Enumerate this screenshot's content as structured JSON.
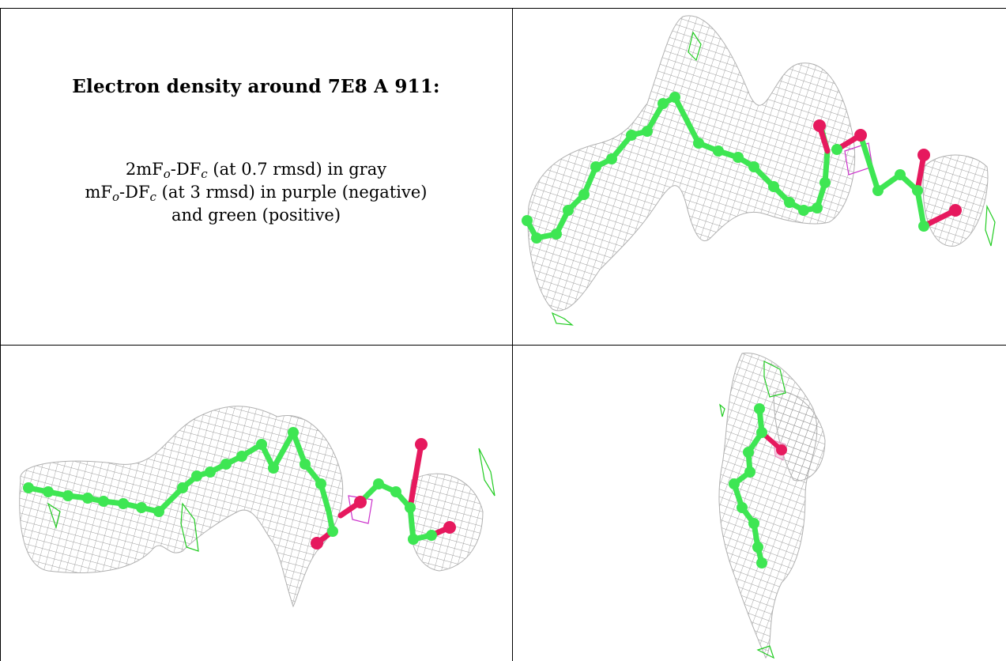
{
  "caption": {
    "title": "Electron density around 7E8 A 911:",
    "line1": {
      "pre": "2mF",
      "sub1": "o",
      "mid": "-DF",
      "sub2": "c",
      "post": " (at 0.7 rmsd) in gray"
    },
    "line2": {
      "pre": "mF",
      "sub1": "o",
      "mid": "-DF",
      "sub2": "c",
      "post": " (at 3 rmsd) in purple (negative)"
    },
    "line3": "and green (positive)"
  },
  "colors": {
    "carbon": "#3ee653",
    "oxygen": "#e6195e",
    "mesh_2fofc": "#9a9a9a",
    "mesh_positive": "#22cc22",
    "mesh_negative": "#cc33cc"
  },
  "panels": [
    {
      "name": "view-top-right",
      "icon": "ligand-density-view-icon"
    },
    {
      "name": "view-bottom-left",
      "icon": "ligand-density-view-icon"
    },
    {
      "name": "view-bottom-right",
      "icon": "ligand-density-view-icon"
    }
  ]
}
